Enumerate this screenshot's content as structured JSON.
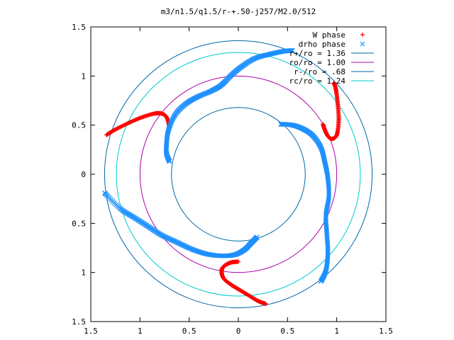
{
  "chart_data": {
    "type": "scatter",
    "title": "m3/n1.5/q1.5/r-+.50-j257/M2.0/512",
    "xlim": [
      -1.5,
      1.5
    ],
    "ylim": [
      -1.5,
      1.5
    ],
    "x_ticks": [
      {
        "value": -1.5,
        "label": "1.5"
      },
      {
        "value": -1.0,
        "label": "1"
      },
      {
        "value": -0.5,
        "label": "0.5"
      },
      {
        "value": 0.0,
        "label": "0"
      },
      {
        "value": 0.5,
        "label": "0.5"
      },
      {
        "value": 1.0,
        "label": "1"
      },
      {
        "value": 1.5,
        "label": "1.5"
      }
    ],
    "y_ticks": [
      {
        "value": 1.5,
        "label": "1.5"
      },
      {
        "value": 1.0,
        "label": "1"
      },
      {
        "value": 0.5,
        "label": "0.5"
      },
      {
        "value": 0.0,
        "label": "0"
      },
      {
        "value": -0.5,
        "label": "0.5"
      },
      {
        "value": -1.0,
        "label": "1"
      },
      {
        "value": -1.5,
        "label": "1.5"
      }
    ],
    "grid": false,
    "legend_position": "top-right",
    "series": [
      {
        "name": "W phase",
        "marker": "plus",
        "color": "#ff0000",
        "arms": [
          [
            [
              -1.34,
              0.4
            ],
            [
              -1.26,
              0.45
            ],
            [
              -1.12,
              0.52
            ],
            [
              -0.98,
              0.58
            ],
            [
              -0.84,
              0.62
            ],
            [
              -0.76,
              0.61
            ],
            [
              -0.72,
              0.56
            ],
            [
              -0.7,
              0.47
            ]
          ],
          [
            [
              0.86,
              0.51
            ],
            [
              0.88,
              0.45
            ],
            [
              0.91,
              0.39
            ],
            [
              0.95,
              0.36
            ],
            [
              1.0,
              0.4
            ],
            [
              1.02,
              0.55
            ],
            [
              1.01,
              0.72
            ],
            [
              0.99,
              0.87
            ],
            [
              0.97,
              0.93
            ]
          ],
          [
            [
              0.28,
              -1.32
            ],
            [
              0.2,
              -1.29
            ],
            [
              0.1,
              -1.23
            ],
            [
              0.0,
              -1.17
            ],
            [
              -0.08,
              -1.12
            ],
            [
              -0.15,
              -1.06
            ],
            [
              -0.17,
              -0.99
            ],
            [
              -0.15,
              -0.94
            ],
            [
              -0.08,
              -0.9
            ],
            [
              0.0,
              -0.89
            ]
          ]
        ]
      },
      {
        "name": "drho phase",
        "marker": "x",
        "color": "#1e90ff",
        "arms": [
          [
            [
              -0.7,
              0.13
            ],
            [
              -0.73,
              0.21
            ],
            [
              -0.73,
              0.31
            ],
            [
              -0.71,
              0.45
            ],
            [
              -0.64,
              0.61
            ],
            [
              -0.53,
              0.72
            ],
            [
              -0.41,
              0.79
            ],
            [
              -0.27,
              0.85
            ],
            [
              -0.17,
              0.91
            ],
            [
              -0.07,
              1.01
            ],
            [
              0.04,
              1.1
            ],
            [
              0.17,
              1.18
            ],
            [
              0.31,
              1.22
            ],
            [
              0.45,
              1.25
            ],
            [
              0.55,
              1.26
            ]
          ],
          [
            [
              0.43,
              0.51
            ],
            [
              0.55,
              0.5
            ],
            [
              0.66,
              0.46
            ],
            [
              0.76,
              0.39
            ],
            [
              0.84,
              0.27
            ],
            [
              0.88,
              0.12
            ],
            [
              0.91,
              -0.04
            ],
            [
              0.92,
              -0.23
            ],
            [
              0.89,
              -0.42
            ],
            [
              0.9,
              -0.61
            ],
            [
              0.91,
              -0.8
            ],
            [
              0.89,
              -0.98
            ],
            [
              0.84,
              -1.09
            ]
          ],
          [
            [
              0.19,
              -0.64
            ],
            [
              0.13,
              -0.7
            ],
            [
              0.06,
              -0.77
            ],
            [
              -0.04,
              -0.82
            ],
            [
              -0.18,
              -0.83
            ],
            [
              -0.33,
              -0.81
            ],
            [
              -0.48,
              -0.76
            ],
            [
              -0.63,
              -0.69
            ],
            [
              -0.78,
              -0.62
            ],
            [
              -0.92,
              -0.53
            ],
            [
              -1.06,
              -0.44
            ],
            [
              -1.2,
              -0.35
            ],
            [
              -1.36,
              -0.19
            ]
          ]
        ]
      },
      {
        "name": "r+/ro = 1.36",
        "type": "circle",
        "radius": 1.36,
        "color": "#0066aa"
      },
      {
        "name": "ro/ro = 1.00",
        "type": "circle",
        "radius": 1.0,
        "color": "#aa00aa"
      },
      {
        "name": "r-/ro = .68",
        "type": "circle",
        "radius": 0.68,
        "color": "#0066aa"
      },
      {
        "name": "rc/ro = 1.24",
        "type": "circle",
        "radius": 1.24,
        "color": "#00cccc"
      }
    ]
  }
}
